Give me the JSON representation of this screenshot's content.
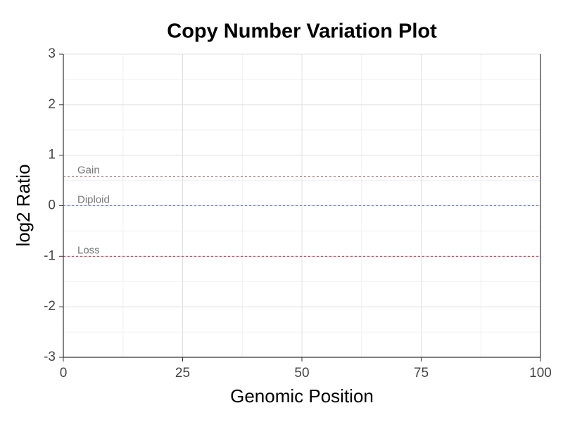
{
  "chart_data": {
    "type": "line",
    "title": "Copy Number Variation Plot",
    "x_label": "Genomic Position",
    "y_label": "log2 Ratio",
    "xlim": [
      0,
      100
    ],
    "xticks": [
      0,
      25,
      50,
      75,
      100
    ],
    "ylim": [
      -3,
      3
    ],
    "yticks": [
      -3,
      -2,
      -1,
      0,
      1,
      2,
      3
    ],
    "grid": true,
    "minor_grid": true,
    "series": [],
    "reference_lines": [
      {
        "label": "Gain",
        "value": 0.585,
        "color": "#a0504a"
      },
      {
        "label": "Diploid",
        "value": 0,
        "color": "#4a6fc0"
      },
      {
        "label": "Loss",
        "value": -1,
        "color": "#c8283c"
      }
    ]
  }
}
